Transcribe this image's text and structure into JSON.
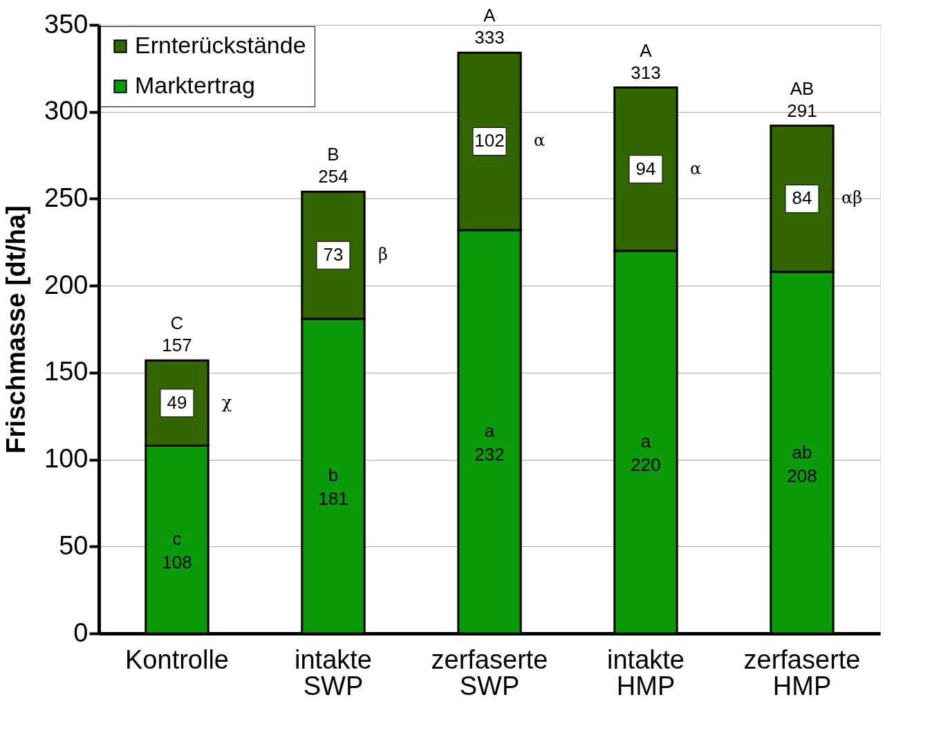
{
  "chart_data": {
    "type": "bar",
    "stacked": true,
    "ylabel": "Frischmasse [dt/ha]",
    "categories": [
      "Kontrolle",
      "intakte SWP",
      "zerfaserte SWP",
      "intakte HMP",
      "zerfaserte HMP"
    ],
    "series": [
      {
        "name": "Marktertrag",
        "color": "#0a9a0a",
        "values": [
          108,
          181,
          232,
          220,
          208
        ],
        "value_labels": [
          "c\n108",
          "b\n181",
          "a\n232",
          "a\n220",
          "ab\n208"
        ]
      },
      {
        "name": "Ernterückstände",
        "color": "#336600",
        "values": [
          49,
          73,
          102,
          94,
          84
        ],
        "value_labels": [
          "49",
          "73",
          "102",
          "94",
          "84"
        ]
      }
    ],
    "totals": [
      "C\n157",
      "B\n254",
      "A\n333",
      "A\n313",
      "AB\n291"
    ],
    "annotations": [
      "χ",
      "β",
      "α",
      "α",
      "αβ"
    ],
    "ylim": [
      0,
      350
    ],
    "yticks": [
      0,
      50,
      100,
      150,
      200,
      250,
      300,
      350
    ],
    "grid": "y",
    "legend": "top left"
  }
}
